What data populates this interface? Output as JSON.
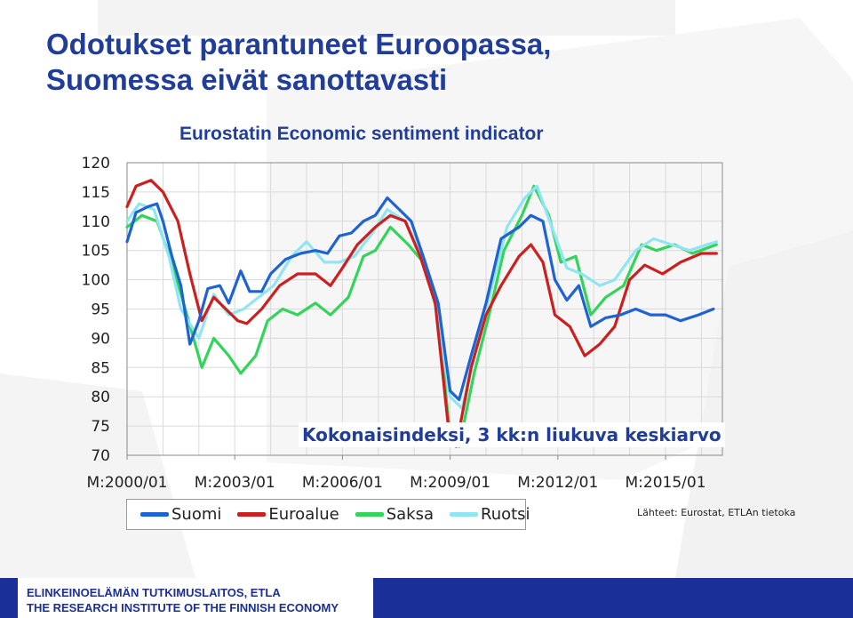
{
  "page": {
    "title_lines": [
      "Odotukset parantuneet Euroopassa,",
      "Suomessa eivät sanottavasti"
    ],
    "source_note": "Lähteet: Eurostat, ETLAn tietoka"
  },
  "footer": {
    "line1": "ELINKEINOELÄMÄN TUTKIMUSLAITOS, ETLA",
    "line2": "THE RESEARCH INSTITUTE OF THE FINNISH ECONOMY",
    "color": "#1a2f98"
  },
  "chart_data": {
    "type": "line",
    "title": "Eurostatin Economic sentiment indicator",
    "annotation": "Kokonaisindeksi, 3 kk:n liukuva keskiarvo",
    "ylim": [
      70,
      120
    ],
    "yticks": [
      120,
      115,
      110,
      105,
      100,
      95,
      90,
      85,
      80,
      75,
      70
    ],
    "xlim": [
      "2000-01",
      "2016-08"
    ],
    "xtick_labels": [
      "M:2000/01",
      "M:2003/01",
      "M:2006/01",
      "M:2009/01",
      "M:2012/01",
      "M:2015/01"
    ],
    "xtick_dates": [
      "2000-01",
      "2003-01",
      "2006-01",
      "2009-01",
      "2012-01",
      "2015-01"
    ],
    "grid": true,
    "legend_position": "bottom",
    "series": [
      {
        "name": "Suomi",
        "color": "#1e63d4",
        "points": [
          [
            "2000-01",
            106.5
          ],
          [
            "2000-04",
            111.5
          ],
          [
            "2000-08",
            112.5
          ],
          [
            "2000-11",
            113
          ],
          [
            "2001-01",
            110
          ],
          [
            "2001-04",
            104
          ],
          [
            "2001-07",
            99
          ],
          [
            "2001-10",
            89
          ],
          [
            "2002-01",
            93
          ],
          [
            "2002-04",
            98.5
          ],
          [
            "2002-08",
            99
          ],
          [
            "2002-11",
            96
          ],
          [
            "2003-03",
            101.5
          ],
          [
            "2003-06",
            98
          ],
          [
            "2003-10",
            98
          ],
          [
            "2004-01",
            101
          ],
          [
            "2004-06",
            103.5
          ],
          [
            "2004-11",
            104.5
          ],
          [
            "2005-04",
            105
          ],
          [
            "2005-08",
            104.5
          ],
          [
            "2005-12",
            107.5
          ],
          [
            "2006-04",
            108
          ],
          [
            "2006-08",
            110
          ],
          [
            "2006-12",
            111
          ],
          [
            "2007-04",
            114
          ],
          [
            "2007-08",
            112
          ],
          [
            "2007-12",
            110
          ],
          [
            "2008-04",
            104
          ],
          [
            "2008-09",
            96
          ],
          [
            "2009-01",
            81
          ],
          [
            "2009-04",
            79.5
          ],
          [
            "2009-08",
            87
          ],
          [
            "2010-01",
            96
          ],
          [
            "2010-06",
            107
          ],
          [
            "2010-12",
            109
          ],
          [
            "2011-04",
            111
          ],
          [
            "2011-08",
            110
          ],
          [
            "2011-12",
            100
          ],
          [
            "2012-04",
            96.5
          ],
          [
            "2012-08",
            99
          ],
          [
            "2012-12",
            92
          ],
          [
            "2013-05",
            93.5
          ],
          [
            "2013-10",
            94
          ],
          [
            "2014-03",
            95
          ],
          [
            "2014-08",
            94
          ],
          [
            "2015-01",
            94
          ],
          [
            "2015-06",
            93
          ],
          [
            "2015-12",
            94
          ],
          [
            "2016-05",
            95
          ]
        ]
      },
      {
        "name": "Euroalue",
        "color": "#cc1f1f",
        "points": [
          [
            "2000-01",
            112.5
          ],
          [
            "2000-04",
            116
          ],
          [
            "2000-09",
            117
          ],
          [
            "2001-01",
            115
          ],
          [
            "2001-06",
            110
          ],
          [
            "2001-10",
            101
          ],
          [
            "2002-02",
            93
          ],
          [
            "2002-06",
            97
          ],
          [
            "2002-10",
            95
          ],
          [
            "2003-02",
            93
          ],
          [
            "2003-05",
            92.5
          ],
          [
            "2003-10",
            95
          ],
          [
            "2004-04",
            99
          ],
          [
            "2004-10",
            101
          ],
          [
            "2005-04",
            101
          ],
          [
            "2005-09",
            99
          ],
          [
            "2006-01",
            102
          ],
          [
            "2006-06",
            106
          ],
          [
            "2006-12",
            109
          ],
          [
            "2007-05",
            111
          ],
          [
            "2007-10",
            110
          ],
          [
            "2008-03",
            104
          ],
          [
            "2008-08",
            96
          ],
          [
            "2009-01",
            72
          ],
          [
            "2009-03",
            71.5
          ],
          [
            "2009-08",
            85
          ],
          [
            "2010-01",
            94
          ],
          [
            "2010-06",
            99
          ],
          [
            "2010-12",
            104
          ],
          [
            "2011-04",
            106
          ],
          [
            "2011-08",
            103
          ],
          [
            "2011-12",
            94
          ],
          [
            "2012-05",
            92
          ],
          [
            "2012-10",
            87
          ],
          [
            "2013-03",
            89
          ],
          [
            "2013-08",
            92
          ],
          [
            "2014-01",
            100
          ],
          [
            "2014-06",
            102.5
          ],
          [
            "2014-12",
            101
          ],
          [
            "2015-06",
            103
          ],
          [
            "2016-01",
            104.5
          ],
          [
            "2016-06",
            104.5
          ]
        ]
      },
      {
        "name": "Saksa",
        "color": "#33d45a",
        "points": [
          [
            "2000-01",
            109
          ],
          [
            "2000-06",
            111
          ],
          [
            "2000-11",
            110
          ],
          [
            "2001-04",
            103
          ],
          [
            "2001-09",
            94
          ],
          [
            "2002-02",
            85
          ],
          [
            "2002-06",
            90
          ],
          [
            "2002-11",
            87
          ],
          [
            "2003-03",
            84
          ],
          [
            "2003-08",
            87
          ],
          [
            "2003-12",
            93
          ],
          [
            "2004-05",
            95
          ],
          [
            "2004-10",
            94
          ],
          [
            "2005-04",
            96
          ],
          [
            "2005-09",
            94
          ],
          [
            "2006-03",
            97
          ],
          [
            "2006-08",
            104
          ],
          [
            "2006-12",
            105
          ],
          [
            "2007-05",
            109
          ],
          [
            "2007-11",
            106
          ],
          [
            "2008-04",
            103
          ],
          [
            "2008-09",
            94
          ],
          [
            "2009-01",
            73
          ],
          [
            "2009-04",
            71.5
          ],
          [
            "2009-09",
            84
          ],
          [
            "2010-02",
            94
          ],
          [
            "2010-07",
            105
          ],
          [
            "2011-01",
            111
          ],
          [
            "2011-05",
            116
          ],
          [
            "2011-10",
            111
          ],
          [
            "2012-02",
            103
          ],
          [
            "2012-07",
            104
          ],
          [
            "2012-12",
            94
          ],
          [
            "2013-05",
            97
          ],
          [
            "2013-11",
            99
          ],
          [
            "2014-05",
            106
          ],
          [
            "2014-10",
            105
          ],
          [
            "2015-04",
            106
          ],
          [
            "2015-10",
            104.5
          ],
          [
            "2016-06",
            106
          ]
        ]
      },
      {
        "name": "Ruotsi",
        "color": "#8fe6f2",
        "points": [
          [
            "2000-01",
            110
          ],
          [
            "2000-05",
            113
          ],
          [
            "2000-10",
            112
          ],
          [
            "2001-03",
            104
          ],
          [
            "2001-07",
            95
          ],
          [
            "2002-01",
            90
          ],
          [
            "2002-06",
            97.5
          ],
          [
            "2002-11",
            94
          ],
          [
            "2003-04",
            95
          ],
          [
            "2003-09",
            97
          ],
          [
            "2004-02",
            99
          ],
          [
            "2004-08",
            104
          ],
          [
            "2005-01",
            106.5
          ],
          [
            "2005-07",
            103
          ],
          [
            "2005-12",
            103
          ],
          [
            "2006-05",
            104
          ],
          [
            "2006-11",
            108
          ],
          [
            "2007-04",
            112
          ],
          [
            "2007-10",
            110
          ],
          [
            "2008-03",
            105
          ],
          [
            "2008-08",
            96
          ],
          [
            "2009-01",
            80
          ],
          [
            "2009-05",
            78
          ],
          [
            "2009-10",
            89
          ],
          [
            "2010-03",
            99
          ],
          [
            "2010-08",
            109
          ],
          [
            "2011-02",
            114
          ],
          [
            "2011-06",
            116
          ],
          [
            "2011-11",
            109
          ],
          [
            "2012-04",
            102
          ],
          [
            "2012-09",
            101
          ],
          [
            "2013-03",
            99
          ],
          [
            "2013-08",
            100
          ],
          [
            "2014-03",
            105
          ],
          [
            "2014-09",
            107
          ],
          [
            "2015-03",
            106
          ],
          [
            "2015-09",
            105
          ],
          [
            "2016-06",
            106.5
          ]
        ]
      }
    ]
  }
}
